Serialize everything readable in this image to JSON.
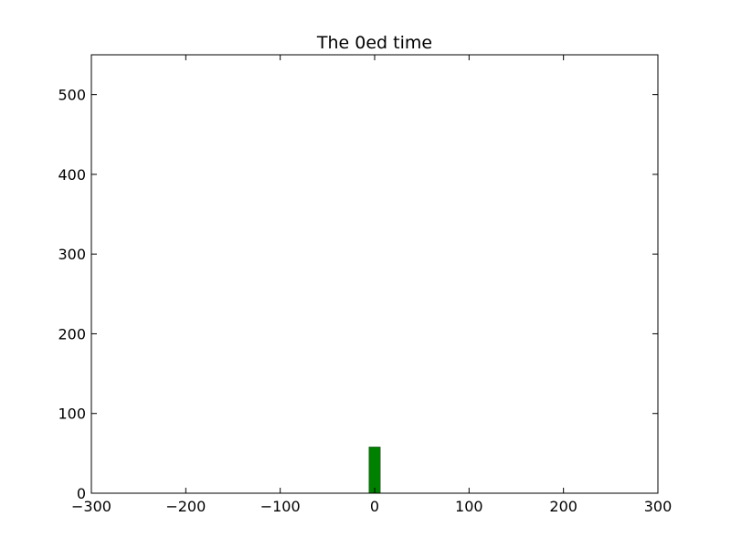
{
  "chart_data": {
    "type": "bar",
    "title": "The 0ed time",
    "xlabel": "",
    "ylabel": "",
    "xlim": [
      -300,
      300
    ],
    "ylim": [
      0,
      550
    ],
    "x_ticks": [
      -300,
      -200,
      -100,
      0,
      100,
      200,
      300
    ],
    "x_tick_labels": [
      "−300",
      "−200",
      "−100",
      "0",
      "100",
      "200",
      "300"
    ],
    "y_ticks": [
      0,
      100,
      200,
      300,
      400,
      500
    ],
    "y_tick_labels": [
      "0",
      "100",
      "200",
      "300",
      "400",
      "500"
    ],
    "grid": false,
    "bar_color": "#008000",
    "bars": [
      {
        "x_start": -6,
        "x_end": 6,
        "value": 58
      }
    ]
  }
}
